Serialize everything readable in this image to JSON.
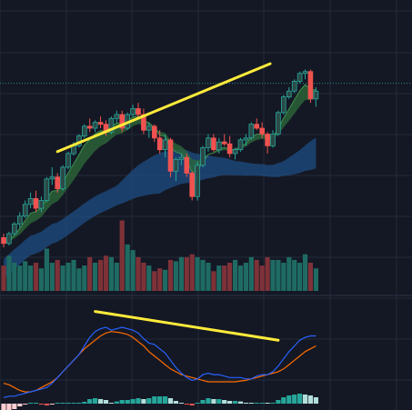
{
  "theme": {
    "background": "#141824",
    "grid": "#232a3a",
    "up": "#26a69a",
    "up_body": "#2b4a47",
    "down": "#ef5350",
    "down_body": "#ef5350",
    "vol_up": "#1f6b63",
    "vol_down": "#7e3238",
    "ema_band": "#2e6b3a",
    "sma_band": "#1f4f87",
    "trendline": "#ffeb3b",
    "macd_line": "#2962ff",
    "signal_line": "#ff6d00",
    "hist_pos_strong": "#26a69a",
    "hist_pos_weak": "#b2dfdb",
    "hist_neg_strong": "#ef5350",
    "hist_neg_weak": "#ffcdd2",
    "price_line": "#2a8a8a"
  },
  "chart_data": {
    "type": "candlestick",
    "price_line": 100,
    "candles": [
      [
        60.5,
        61.5,
        58,
        59
      ],
      [
        59,
        62,
        58.5,
        61.5
      ],
      [
        61.5,
        64.5,
        61,
        64
      ],
      [
        64,
        67,
        63,
        66
      ],
      [
        66,
        70,
        65.5,
        69
      ],
      [
        69,
        72,
        68,
        70.5
      ],
      [
        70.5,
        72.5,
        67,
        68
      ],
      [
        68,
        71,
        67,
        70
      ],
      [
        70,
        76,
        69.5,
        75.5
      ],
      [
        75.5,
        78.5,
        74,
        76
      ],
      [
        76,
        77,
        72,
        73
      ],
      [
        73,
        79,
        72.5,
        78.5
      ],
      [
        78.5,
        82.5,
        78,
        82
      ],
      [
        82,
        85,
        81.5,
        84
      ],
      [
        84,
        87,
        83.5,
        86.5
      ],
      [
        86.5,
        89.5,
        86,
        89
      ],
      [
        89,
        91,
        87.5,
        88.5
      ],
      [
        88.5,
        90.5,
        87.5,
        90
      ],
      [
        90,
        91.5,
        88.5,
        89.5
      ],
      [
        89.5,
        90.5,
        86.5,
        87.5
      ],
      [
        87.5,
        91.5,
        87,
        91
      ],
      [
        91,
        93,
        90,
        92
      ],
      [
        92,
        93,
        87.5,
        88.5
      ],
      [
        88.5,
        92.5,
        88,
        92
      ],
      [
        92,
        94.5,
        91.5,
        93.5
      ],
      [
        93.5,
        95,
        91,
        92
      ],
      [
        92,
        93.5,
        87,
        88
      ],
      [
        88,
        90,
        86,
        89
      ],
      [
        89,
        89.5,
        85,
        86
      ],
      [
        86,
        88,
        82,
        83
      ],
      [
        83,
        87,
        81,
        85.5
      ],
      [
        85.5,
        86,
        76,
        77.5
      ],
      [
        77.5,
        81,
        75,
        80.5
      ],
      [
        80.5,
        82,
        79,
        81
      ],
      [
        81,
        82,
        76,
        77
      ],
      [
        77,
        77.5,
        70,
        71
      ],
      [
        71,
        80,
        70,
        79
      ],
      [
        79,
        84,
        78.5,
        83.5
      ],
      [
        83.5,
        87,
        82.5,
        86
      ],
      [
        86,
        87,
        82.5,
        83
      ],
      [
        83,
        86,
        82,
        85
      ],
      [
        85,
        87,
        84,
        84.5
      ],
      [
        84.5,
        86.5,
        81,
        82
      ],
      [
        82,
        83.5,
        80.5,
        83
      ],
      [
        83,
        86,
        82.5,
        85.5
      ],
      [
        85.5,
        87,
        84,
        86
      ],
      [
        86,
        90,
        85.5,
        89.5
      ],
      [
        89.5,
        91,
        88,
        88.5
      ],
      [
        88.5,
        90,
        86,
        87
      ],
      [
        87,
        87.5,
        82,
        84
      ],
      [
        84,
        88,
        83.5,
        87
      ],
      [
        87,
        93,
        86.5,
        92.5
      ],
      [
        92.5,
        97,
        92,
        96.5
      ],
      [
        96.5,
        99,
        96,
        98
      ],
      [
        98,
        101,
        97.5,
        100.5
      ],
      [
        100.5,
        103,
        100,
        102.5
      ],
      [
        102.5,
        103.5,
        101,
        103
      ],
      [
        103,
        103.5,
        95,
        96
      ],
      [
        96,
        99,
        94,
        98
      ]
    ],
    "volume": [
      18,
      25,
      20,
      18,
      21,
      18,
      20,
      16,
      30,
      20,
      22,
      18,
      20,
      22,
      16,
      18,
      24,
      20,
      22,
      25,
      24,
      20,
      50,
      33,
      29,
      24,
      20,
      18,
      14,
      16,
      15,
      22,
      21,
      24,
      24,
      26,
      24,
      22,
      20,
      14,
      18,
      18,
      20,
      22,
      18,
      20,
      24,
      22,
      18,
      24,
      22,
      22,
      20,
      24,
      22,
      20,
      26,
      20,
      16
    ],
    "macd": {
      "macd_line": [
        -18,
        -17.5,
        -17.5,
        -17,
        -16.5,
        -16,
        -15.5,
        -15,
        -14.5,
        -13,
        -11,
        -9,
        -7,
        -5,
        -3,
        0,
        3,
        5,
        6,
        6.5,
        5.5,
        6,
        6.5,
        6,
        5.5,
        4.5,
        2.5,
        1,
        0.5,
        -1,
        -2.5,
        -5,
        -7.5,
        -9.5,
        -11,
        -12,
        -11.5,
        -10,
        -9.5,
        -10,
        -10,
        -10.5,
        -11,
        -11,
        -11,
        -11.5,
        -11.5,
        -10.5,
        -10,
        -10,
        -9,
        -7,
        -4.5,
        -2,
        0,
        2,
        3,
        3.5,
        3.5
      ],
      "signal_line": [
        -13,
        -13.5,
        -14.5,
        -15.5,
        -16,
        -16,
        -15.5,
        -14.5,
        -13.5,
        -12.5,
        -11,
        -9,
        -7,
        -5,
        -3,
        -1,
        0.5,
        2,
        3.5,
        4.5,
        5,
        4.8,
        4.5,
        4,
        3,
        1.5,
        0,
        -2,
        -3.5,
        -5,
        -6.5,
        -8,
        -9,
        -10,
        -10.5,
        -11,
        -11.5,
        -12,
        -12.5,
        -12.5,
        -12.5,
        -12.5,
        -12.5,
        -12.5,
        -12.2,
        -12,
        -11.5,
        -11,
        -10.5,
        -10,
        -9.5,
        -9,
        -8,
        -6.5,
        -5,
        -3.5,
        -2,
        -1,
        0
      ]
    },
    "upper_trendline": [
      [
        10,
        82.5
      ],
      [
        49.5,
        105
      ]
    ],
    "macd_trendline": [
      [
        17,
        12
      ],
      [
        51,
        2
      ]
    ]
  }
}
